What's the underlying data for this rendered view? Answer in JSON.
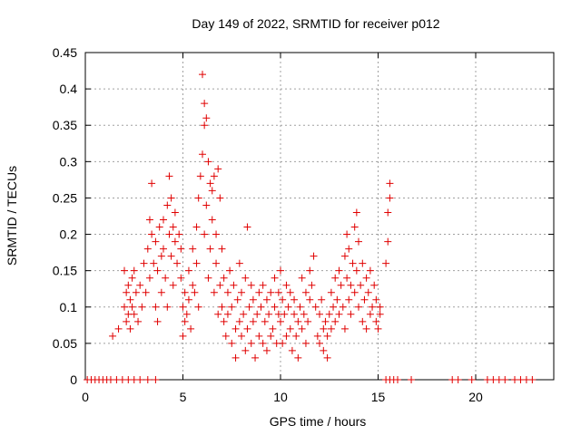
{
  "chart_data": {
    "type": "scatter",
    "title": "Day 149 of 2022, SRMTID for receiver p012",
    "xlabel": "GPS time / hours",
    "ylabel": "SRMTID / TECUs",
    "xlim": [
      0,
      24
    ],
    "ylim": [
      0,
      0.45
    ],
    "xticks": [
      0,
      5,
      10,
      15,
      20
    ],
    "xtick_labels": [
      "0",
      "5",
      "10",
      "15",
      "20"
    ],
    "yticks": [
      0,
      0.05,
      0.1,
      0.15,
      0.2,
      0.25,
      0.3,
      0.35,
      0.4,
      0.45
    ],
    "ytick_labels": [
      "0",
      "0.05",
      "0.1",
      "0.15",
      "0.2",
      "0.25",
      "0.3",
      "0.35",
      "0.4",
      "0.45"
    ],
    "grid": true,
    "marker": "+",
    "color": "#e00000",
    "series": [
      {
        "name": "SRMTID",
        "points": [
          [
            0.1,
            0
          ],
          [
            0.3,
            0
          ],
          [
            0.5,
            0
          ],
          [
            0.7,
            0
          ],
          [
            0.9,
            0
          ],
          [
            1.1,
            0
          ],
          [
            1.3,
            0
          ],
          [
            1.6,
            0
          ],
          [
            1.9,
            0
          ],
          [
            2.2,
            0
          ],
          [
            2.5,
            0
          ],
          [
            2.8,
            0
          ],
          [
            3.2,
            0
          ],
          [
            3.6,
            0
          ],
          [
            1.4,
            0.06
          ],
          [
            1.7,
            0.07
          ],
          [
            2.0,
            0.15
          ],
          [
            2.0,
            0.1
          ],
          [
            2.1,
            0.08
          ],
          [
            2.1,
            0.12
          ],
          [
            2.2,
            0.13
          ],
          [
            2.2,
            0.09
          ],
          [
            2.3,
            0.11
          ],
          [
            2.3,
            0.07
          ],
          [
            2.4,
            0.1
          ],
          [
            2.4,
            0.14
          ],
          [
            2.5,
            0.09
          ],
          [
            2.5,
            0.15
          ],
          [
            2.6,
            0.12
          ],
          [
            2.7,
            0.08
          ],
          [
            2.8,
            0.13
          ],
          [
            2.9,
            0.1
          ],
          [
            3.0,
            0.16
          ],
          [
            3.1,
            0.12
          ],
          [
            3.2,
            0.18
          ],
          [
            3.3,
            0.14
          ],
          [
            3.3,
            0.22
          ],
          [
            3.4,
            0.27
          ],
          [
            3.4,
            0.2
          ],
          [
            3.5,
            0.16
          ],
          [
            3.6,
            0.1
          ],
          [
            3.6,
            0.19
          ],
          [
            3.7,
            0.15
          ],
          [
            3.7,
            0.08
          ],
          [
            3.8,
            0.21
          ],
          [
            3.9,
            0.17
          ],
          [
            3.9,
            0.12
          ],
          [
            4.0,
            0.22
          ],
          [
            4.0,
            0.18
          ],
          [
            4.1,
            0.14
          ],
          [
            4.2,
            0.24
          ],
          [
            4.2,
            0.1
          ],
          [
            4.3,
            0.2
          ],
          [
            4.3,
            0.28
          ],
          [
            4.4,
            0.17
          ],
          [
            4.4,
            0.25
          ],
          [
            4.5,
            0.21
          ],
          [
            4.5,
            0.13
          ],
          [
            4.6,
            0.19
          ],
          [
            4.6,
            0.23
          ],
          [
            4.7,
            0.16
          ],
          [
            4.8,
            0.2
          ],
          [
            4.9,
            0.14
          ],
          [
            4.9,
            0.18
          ],
          [
            5.0,
            0.1
          ],
          [
            5.0,
            0.06
          ],
          [
            5.1,
            0.12
          ],
          [
            5.1,
            0.08
          ],
          [
            5.2,
            0.09
          ],
          [
            5.3,
            0.11
          ],
          [
            5.3,
            0.15
          ],
          [
            5.4,
            0.07
          ],
          [
            5.5,
            0.13
          ],
          [
            5.5,
            0.18
          ],
          [
            5.6,
            0.12
          ],
          [
            5.7,
            0.21
          ],
          [
            5.7,
            0.16
          ],
          [
            5.8,
            0.25
          ],
          [
            5.8,
            0.1
          ],
          [
            5.9,
            0.28
          ],
          [
            6.0,
            0.31
          ],
          [
            6.0,
            0.42
          ],
          [
            6.1,
            0.38
          ],
          [
            6.1,
            0.35
          ],
          [
            6.1,
            0.2
          ],
          [
            6.2,
            0.36
          ],
          [
            6.2,
            0.24
          ],
          [
            6.3,
            0.3
          ],
          [
            6.3,
            0.14
          ],
          [
            6.4,
            0.27
          ],
          [
            6.4,
            0.18
          ],
          [
            6.5,
            0.26
          ],
          [
            6.5,
            0.22
          ],
          [
            6.6,
            0.28
          ],
          [
            6.6,
            0.12
          ],
          [
            6.7,
            0.2
          ],
          [
            6.7,
            0.16
          ],
          [
            6.8,
            0.29
          ],
          [
            6.8,
            0.09
          ],
          [
            6.9,
            0.25
          ],
          [
            6.9,
            0.13
          ],
          [
            7.0,
            0.1
          ],
          [
            7.0,
            0.18
          ],
          [
            7.1,
            0.08
          ],
          [
            7.1,
            0.14
          ],
          [
            7.2,
            0.06
          ],
          [
            7.3,
            0.12
          ],
          [
            7.3,
            0.09
          ],
          [
            7.4,
            0.15
          ],
          [
            7.5,
            0.05
          ],
          [
            7.5,
            0.1
          ],
          [
            7.6,
            0.13
          ],
          [
            7.7,
            0.07
          ],
          [
            7.7,
            0.03
          ],
          [
            7.8,
            0.11
          ],
          [
            7.9,
            0.08
          ],
          [
            7.9,
            0.16
          ],
          [
            8.0,
            0.06
          ],
          [
            8.0,
            0.12
          ],
          [
            8.1,
            0.09
          ],
          [
            8.2,
            0.04
          ],
          [
            8.2,
            0.14
          ],
          [
            8.3,
            0.07
          ],
          [
            8.3,
            0.21
          ],
          [
            8.4,
            0.1
          ],
          [
            8.5,
            0.05
          ],
          [
            8.5,
            0.13
          ],
          [
            8.6,
            0.08
          ],
          [
            8.6,
            0.11
          ],
          [
            8.7,
            0.03
          ],
          [
            8.8,
            0.09
          ],
          [
            8.9,
            0.06
          ],
          [
            8.9,
            0.12
          ],
          [
            9.0,
            0.1
          ],
          [
            9.1,
            0.05
          ],
          [
            9.1,
            0.13
          ],
          [
            9.2,
            0.08
          ],
          [
            9.3,
            0.11
          ],
          [
            9.3,
            0.04
          ],
          [
            9.4,
            0.09
          ],
          [
            9.5,
            0.06
          ],
          [
            9.5,
            0.12
          ],
          [
            9.6,
            0.07
          ],
          [
            9.7,
            0.1
          ],
          [
            9.7,
            0.14
          ],
          [
            9.8,
            0.05
          ],
          [
            9.9,
            0.09
          ],
          [
            9.9,
            0.12
          ],
          [
            10.0,
            0.15
          ],
          [
            10.0,
            0.08
          ],
          [
            10.1,
            0.11
          ],
          [
            10.1,
            0.05
          ],
          [
            10.2,
            0.09
          ],
          [
            10.3,
            0.13
          ],
          [
            10.3,
            0.06
          ],
          [
            10.4,
            0.1
          ],
          [
            10.5,
            0.07
          ],
          [
            10.5,
            0.12
          ],
          [
            10.6,
            0.04
          ],
          [
            10.7,
            0.09
          ],
          [
            10.7,
            0.11
          ],
          [
            10.8,
            0.06
          ],
          [
            10.9,
            0.08
          ],
          [
            10.9,
            0.03
          ],
          [
            11.0,
            0.1
          ],
          [
            11.1,
            0.07
          ],
          [
            11.1,
            0.14
          ],
          [
            11.2,
            0.09
          ],
          [
            11.3,
            0.05
          ],
          [
            11.3,
            0.12
          ],
          [
            11.4,
            0.08
          ],
          [
            11.5,
            0.11
          ],
          [
            11.5,
            0.15
          ],
          [
            11.6,
            0.13
          ],
          [
            11.7,
            0.17
          ],
          [
            11.8,
            0.1
          ],
          [
            11.9,
            0.06
          ],
          [
            12.0,
            0.09
          ],
          [
            12.0,
            0.05
          ],
          [
            12.1,
            0.11
          ],
          [
            12.2,
            0.07
          ],
          [
            12.2,
            0.04
          ],
          [
            12.3,
            0.08
          ],
          [
            12.4,
            0.06
          ],
          [
            12.4,
            0.03
          ],
          [
            12.5,
            0.09
          ],
          [
            12.6,
            0.12
          ],
          [
            12.6,
            0.07
          ],
          [
            12.7,
            0.1
          ],
          [
            12.8,
            0.14
          ],
          [
            12.8,
            0.08
          ],
          [
            12.9,
            0.11
          ],
          [
            13.0,
            0.15
          ],
          [
            13.0,
            0.09
          ],
          [
            13.1,
            0.13
          ],
          [
            13.2,
            0.1
          ],
          [
            13.3,
            0.17
          ],
          [
            13.3,
            0.07
          ],
          [
            13.4,
            0.14
          ],
          [
            13.4,
            0.2
          ],
          [
            13.5,
            0.11
          ],
          [
            13.5,
            0.18
          ],
          [
            13.6,
            0.09
          ],
          [
            13.6,
            0.13
          ],
          [
            13.7,
            0.16
          ],
          [
            13.8,
            0.12
          ],
          [
            13.8,
            0.21
          ],
          [
            13.9,
            0.23
          ],
          [
            13.9,
            0.15
          ],
          [
            14.0,
            0.1
          ],
          [
            14.0,
            0.19
          ],
          [
            14.1,
            0.13
          ],
          [
            14.2,
            0.08
          ],
          [
            14.2,
            0.16
          ],
          [
            14.3,
            0.11
          ],
          [
            14.4,
            0.14
          ],
          [
            14.4,
            0.07
          ],
          [
            14.5,
            0.12
          ],
          [
            14.6,
            0.09
          ],
          [
            14.6,
            0.15
          ],
          [
            14.7,
            0.1
          ],
          [
            14.8,
            0.13
          ],
          [
            14.9,
            0.08
          ],
          [
            14.9,
            0.11
          ],
          [
            15.0,
            0.07
          ],
          [
            15.1,
            0.1
          ],
          [
            15.1,
            0.09
          ],
          [
            15.4,
            0.16
          ],
          [
            15.5,
            0.19
          ],
          [
            15.5,
            0.23
          ],
          [
            15.6,
            0.25
          ],
          [
            15.6,
            0.27
          ],
          [
            15.4,
            0
          ],
          [
            15.6,
            0
          ],
          [
            15.8,
            0
          ],
          [
            16.0,
            0
          ],
          [
            16.7,
            0
          ],
          [
            18.8,
            0
          ],
          [
            19.1,
            0
          ],
          [
            19.8,
            0
          ],
          [
            20.6,
            0
          ],
          [
            20.9,
            0
          ],
          [
            21.2,
            0
          ],
          [
            21.5,
            0
          ],
          [
            22.0,
            0
          ],
          [
            22.3,
            0
          ],
          [
            22.6,
            0
          ],
          [
            22.9,
            0
          ]
        ]
      }
    ]
  }
}
